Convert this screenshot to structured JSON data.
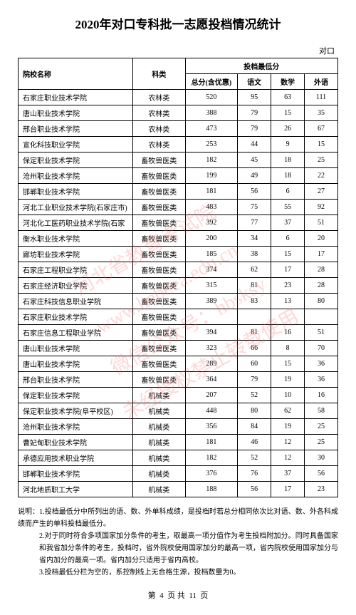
{
  "title": "2020年对口专科批一志愿投档情况统计",
  "category_label": "对口",
  "headers": {
    "school": "院校名称",
    "category": "科类",
    "score_group": "投档最低分",
    "total": "总分(含优惠)",
    "chinese": "语文",
    "math": "数学",
    "foreign": "外语"
  },
  "rows": [
    {
      "school": "石家庄职业技术学院",
      "category": "农林类",
      "total": "520",
      "chinese": "95",
      "math": "63",
      "foreign": "111"
    },
    {
      "school": "唐山职业技术学院",
      "category": "农林类",
      "total": "388",
      "chinese": "79",
      "math": "15",
      "foreign": "35"
    },
    {
      "school": "邢台职业技术学院",
      "category": "农林类",
      "total": "473",
      "chinese": "79",
      "math": "26",
      "foreign": "67"
    },
    {
      "school": "宣化科技职业学院",
      "category": "农林类",
      "total": "253",
      "chinese": "44",
      "math": "9",
      "foreign": "15"
    },
    {
      "school": "保定职业技术学院",
      "category": "畜牧兽医类",
      "total": "182",
      "chinese": "45",
      "math": "18",
      "foreign": "25"
    },
    {
      "school": "沧州职业技术学院",
      "category": "畜牧兽医类",
      "total": "199",
      "chinese": "49",
      "math": "18",
      "foreign": "22"
    },
    {
      "school": "邯郸职业技术学院",
      "category": "畜牧兽医类",
      "total": "181",
      "chinese": "56",
      "math": "6",
      "foreign": "27"
    },
    {
      "school": "河北工业职业技术学院(石家庄市)",
      "category": "畜牧兽医类",
      "total": "483",
      "chinese": "75",
      "math": "55",
      "foreign": "92"
    },
    {
      "school": "河北化工医药职业技术学院(石家",
      "category": "畜牧兽医类",
      "total": "392",
      "chinese": "77",
      "math": "37",
      "foreign": "51"
    },
    {
      "school": "衡水职业技术学院",
      "category": "畜牧兽医类",
      "total": "200",
      "chinese": "34",
      "math": "6",
      "foreign": "20"
    },
    {
      "school": "廊坊职业技术学院",
      "category": "畜牧兽医类",
      "total": "185",
      "chinese": "38",
      "math": "15",
      "foreign": "17"
    },
    {
      "school": "石家庄工程职业学院",
      "category": "畜牧兽医类",
      "total": "374",
      "chinese": "62",
      "math": "17",
      "foreign": "28"
    },
    {
      "school": "石家庄经济职业学院",
      "category": "畜牧兽医类",
      "total": "315",
      "chinese": "81",
      "math": "23",
      "foreign": "28"
    },
    {
      "school": "石家庄科技信息职业学院",
      "category": "畜牧兽医类",
      "total": "389",
      "chinese": "83",
      "math": "13",
      "foreign": "80"
    },
    {
      "school": "石家庄职业技术学院",
      "category": "畜牧兽医类",
      "total": "",
      "chinese": "",
      "math": "",
      "foreign": ""
    },
    {
      "school": "石家庄信息工程职业学院",
      "category": "畜牧兽医类",
      "total": "394",
      "chinese": "81",
      "math": "16",
      "foreign": "51"
    },
    {
      "school": "唐山职业技术学院",
      "category": "畜牧兽医类",
      "total": "323",
      "chinese": "66",
      "math": "8",
      "foreign": "70"
    },
    {
      "school": "唐山职业技术学院",
      "category": "畜牧兽医类",
      "total": "289",
      "chinese": "60",
      "math": "15",
      "foreign": "36"
    },
    {
      "school": "邢台职业技术学院",
      "category": "畜牧兽医类",
      "total": "364",
      "chinese": "79",
      "math": "19",
      "foreign": "36"
    },
    {
      "school": "保定职业技术学院",
      "category": "机械类",
      "total": "207",
      "chinese": "52",
      "math": "10",
      "foreign": "16"
    },
    {
      "school": "保定职业技术学院(阜平校区)",
      "category": "机械类",
      "total": "448",
      "chinese": "80",
      "math": "62",
      "foreign": "58"
    },
    {
      "school": "沧州职业技术学院",
      "category": "机械类",
      "total": "356",
      "chinese": "84",
      "math": "19",
      "foreign": "25"
    },
    {
      "school": "曹妃甸职业技术学院",
      "category": "机械类",
      "total": "181",
      "chinese": "46",
      "math": "12",
      "foreign": "25"
    },
    {
      "school": "承德应用技术职业学院",
      "category": "机械类",
      "total": "182",
      "chinese": "52",
      "math": "12",
      "foreign": "30"
    },
    {
      "school": "邯郸职业技术学院",
      "category": "机械类",
      "total": "376",
      "chinese": "76",
      "math": "37",
      "foreign": "56"
    },
    {
      "school": "河北地质职工大学",
      "category": "机械类",
      "total": "188",
      "chinese": "56",
      "math": "17",
      "foreign": "23"
    }
  ],
  "notes": {
    "prefix": "说明：",
    "n1": "1.投档最低分中所列出的语、数、外单科成绩，是投档时若总分相同依次比对语、数、外各科成绩而产生的单科投档最低分。",
    "n2": "2.对于同时符合多项国家加分条件的考生，取最高一项分值作为考生投档附加分。同时具备国家和我省加分条件的考生，投档时，省外院校使用国家加分的最高一项，省内院校使用国家加分与省内加分的最高一项。省内加分只适用于省内高校。",
    "n3": "3.投档最低分栏为空的，系控制线上无合格生源，投档数量为0。"
  },
  "footer": {
    "page_label_pre": "第",
    "page_current": "4",
    "page_label_mid": "页 共",
    "page_total": "11",
    "page_label_post": "页"
  },
  "watermark": {
    "line1": "河北省教育考试院",
    "line2": "微信公众号：hbsksy",
    "line3": "未经授权禁止转载使用",
    "url": "www.hebeea.edu.cn"
  }
}
